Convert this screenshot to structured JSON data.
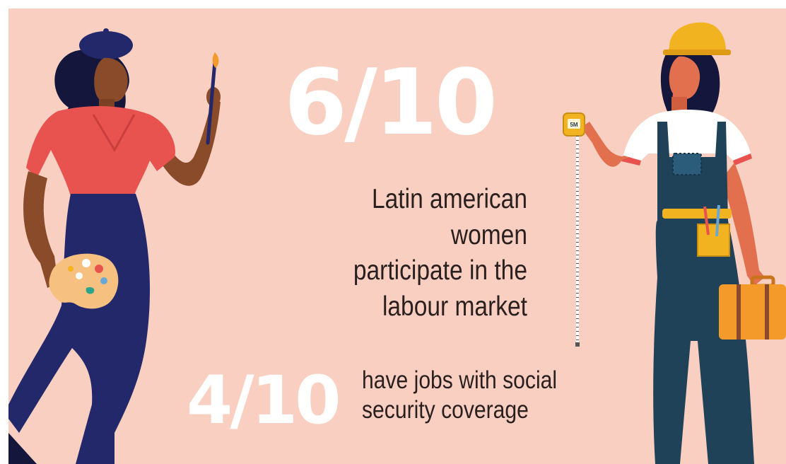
{
  "colors": {
    "background": "#f9cfc1",
    "stat_text": "#ffffff",
    "body_text": "#2a1f1f",
    "skin": "#8a4b2a",
    "painter_top": "#e8524f",
    "navy": "#23286b",
    "overalls": "#1f4259",
    "helmet": "#f2b321",
    "toolbox": "#f39a2a"
  },
  "headline": {
    "stat": "6/10",
    "caption": "Latin american women\nparticipate in the\nlabour market"
  },
  "secondary": {
    "stat": "4/10",
    "caption": "have jobs with social\nsecurity coverage"
  },
  "illustrations": {
    "painter": {
      "icon": "woman-painter-illustration"
    },
    "worker": {
      "icon": "woman-construction-worker-illustration",
      "tape_label": "5M"
    }
  }
}
